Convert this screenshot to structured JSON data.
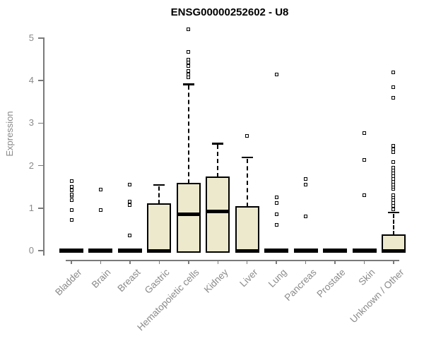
{
  "chart_data": {
    "type": "boxplot",
    "title": "ENSG00000252602 - U8",
    "xlabel": "",
    "ylabel": "Expression",
    "ylim": [
      0,
      5.3
    ],
    "yticks": [
      0,
      1,
      2,
      3,
      4,
      5
    ],
    "grid": false,
    "legend": null,
    "colors": {
      "box_fill": "#EDE9CD",
      "box_border": "#000000",
      "axis_line": "#7a7a7a",
      "tick_label": "#8a8a8a",
      "title": "#000000"
    },
    "categories": [
      "Bladder",
      "Brain",
      "Breast",
      "Gastric",
      "Hematopoietic cells",
      "Kidney",
      "Liver",
      "Lung",
      "Pancreas",
      "Prostate",
      "Skin",
      "Unknown / Other"
    ],
    "series": [
      {
        "name": "Bladder",
        "q1": 0,
        "median": 0,
        "q3": 0,
        "whisker_low": 0,
        "whisker_high": 0,
        "outliers": [
          0.72,
          0.95,
          1.18,
          1.28,
          1.32,
          1.42,
          1.5,
          1.64
        ]
      },
      {
        "name": "Brain",
        "q1": 0,
        "median": 0,
        "q3": 0,
        "whisker_low": 0,
        "whisker_high": 0,
        "outliers": [
          0.96,
          1.44
        ]
      },
      {
        "name": "Breast",
        "q1": 0,
        "median": 0,
        "q3": 0,
        "whisker_low": 0,
        "whisker_high": 0,
        "outliers": [
          0.35,
          1.07,
          1.16,
          1.56
        ]
      },
      {
        "name": "Gastric",
        "q1": 0,
        "median": 0,
        "q3": 1.1,
        "whisker_low": 0,
        "whisker_high": 1.55,
        "outliers": []
      },
      {
        "name": "Hematopoietic cells",
        "q1": 0,
        "median": 0.86,
        "q3": 1.58,
        "whisker_low": 0,
        "whisker_high": 3.92,
        "outliers": [
          4.07,
          4.15,
          4.23,
          4.35,
          4.42,
          4.5,
          4.68,
          5.2
        ]
      },
      {
        "name": "Kidney",
        "q1": 0,
        "median": 0.93,
        "q3": 1.72,
        "whisker_low": 0,
        "whisker_high": 2.52,
        "outliers": []
      },
      {
        "name": "Liver",
        "q1": 0,
        "median": 0,
        "q3": 1.03,
        "whisker_low": 0,
        "whisker_high": 2.2,
        "outliers": [
          2.7
        ]
      },
      {
        "name": "Lung",
        "q1": 0,
        "median": 0,
        "q3": 0,
        "whisker_low": 0,
        "whisker_high": 0,
        "outliers": [
          0.6,
          0.86,
          1.12,
          1.25,
          4.15
        ]
      },
      {
        "name": "Pancreas",
        "q1": 0,
        "median": 0,
        "q3": 0,
        "whisker_low": 0,
        "whisker_high": 0,
        "outliers": [
          0.8,
          1.55,
          1.68
        ]
      },
      {
        "name": "Prostate",
        "q1": 0,
        "median": 0,
        "q3": 0,
        "whisker_low": 0,
        "whisker_high": 0,
        "outliers": []
      },
      {
        "name": "Skin",
        "q1": 0,
        "median": 0,
        "q3": 0,
        "whisker_low": 0,
        "whisker_high": 0,
        "outliers": [
          1.3,
          2.13,
          2.77
        ]
      },
      {
        "name": "Unknown / Other",
        "q1": 0,
        "median": 0,
        "q3": 0.37,
        "whisker_low": 0,
        "whisker_high": 0.9,
        "outliers": [
          0.98,
          1.05,
          1.12,
          1.18,
          1.25,
          1.3,
          1.45,
          1.5,
          1.55,
          1.62,
          1.68,
          1.75,
          1.82,
          1.88,
          1.95,
          2.08,
          2.32,
          2.39,
          2.47,
          3.6,
          3.85,
          4.2
        ]
      }
    ]
  }
}
